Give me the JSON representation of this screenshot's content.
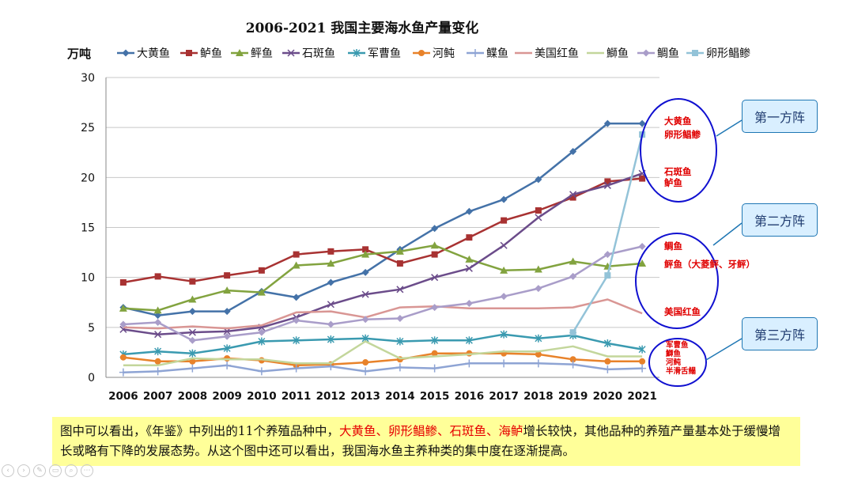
{
  "chart_data": {
    "type": "line",
    "title": "2006-2021 我国主要海水鱼产量变化",
    "ylabel": "万吨",
    "ylim": [
      0,
      30
    ],
    "yticks": [
      0,
      5,
      10,
      15,
      20,
      25,
      30
    ],
    "grid": true,
    "legend": "top",
    "categories": [
      "2006",
      "2007",
      "2008",
      "2009",
      "2010",
      "2011",
      "2012",
      "2013",
      "2014",
      "2015",
      "2016",
      "2017",
      "2018",
      "2019",
      "2020",
      "2021"
    ],
    "series": [
      {
        "name": "大黄鱼",
        "color": "#4472a8",
        "marker": "diamond",
        "values": [
          7.0,
          6.2,
          6.6,
          6.6,
          8.6,
          8.0,
          9.5,
          10.5,
          12.8,
          14.9,
          16.6,
          17.8,
          19.8,
          22.6,
          25.4,
          25.4
        ]
      },
      {
        "name": "鲈鱼",
        "color": "#a83232",
        "marker": "square",
        "values": [
          9.5,
          10.1,
          9.6,
          10.2,
          10.7,
          12.3,
          12.6,
          12.8,
          11.4,
          12.3,
          14.0,
          15.7,
          16.7,
          18.0,
          19.6,
          19.9
        ]
      },
      {
        "name": "鲆鱼",
        "color": "#82a33f",
        "marker": "triangle",
        "values": [
          6.9,
          6.7,
          7.8,
          8.7,
          8.5,
          11.2,
          11.4,
          12.3,
          12.6,
          13.2,
          11.8,
          10.7,
          10.8,
          11.6,
          11.1,
          11.4
        ]
      },
      {
        "name": "石斑鱼",
        "color": "#6b4c8a",
        "marker": "x",
        "values": [
          4.8,
          4.3,
          4.5,
          4.6,
          5.0,
          6.0,
          7.3,
          8.3,
          8.8,
          10.0,
          10.9,
          13.2,
          16.0,
          18.3,
          19.2,
          20.4
        ]
      },
      {
        "name": "军曹鱼",
        "color": "#3a9ab0",
        "marker": "asterisk",
        "values": [
          2.3,
          2.6,
          2.4,
          2.9,
          3.6,
          3.7,
          3.8,
          3.9,
          3.6,
          3.7,
          3.7,
          4.3,
          3.9,
          4.2,
          3.4,
          2.8
        ]
      },
      {
        "name": "河鲀",
        "color": "#e8822a",
        "marker": "circle",
        "values": [
          2.0,
          1.6,
          1.6,
          1.9,
          1.7,
          1.2,
          1.3,
          1.5,
          1.8,
          2.4,
          2.4,
          2.4,
          2.3,
          1.8,
          1.6,
          1.6
        ]
      },
      {
        "name": "鲽鱼",
        "color": "#8ea4d4",
        "marker": "plus",
        "values": [
          0.5,
          0.6,
          0.9,
          1.2,
          0.6,
          0.9,
          1.1,
          0.6,
          1.0,
          0.9,
          1.4,
          1.4,
          1.4,
          1.3,
          0.8,
          0.9
        ]
      },
      {
        "name": "美国红鱼",
        "color": "#d99694",
        "marker": "none",
        "values": [
          5.0,
          4.9,
          5.1,
          4.9,
          5.2,
          6.5,
          6.6,
          6.0,
          7.0,
          7.1,
          6.9,
          6.9,
          6.9,
          7.0,
          7.8,
          6.4
        ]
      },
      {
        "name": "鰤鱼",
        "color": "#c3d69b",
        "marker": "none",
        "values": [
          1.2,
          1.2,
          1.9,
          1.8,
          1.8,
          1.4,
          1.4,
          3.6,
          1.9,
          2.1,
          2.3,
          2.6,
          2.6,
          3.1,
          2.1,
          2.1
        ]
      },
      {
        "name": "鲷鱼",
        "color": "#a99dc9",
        "marker": "diamond",
        "values": [
          5.3,
          5.5,
          3.7,
          4.1,
          4.5,
          5.7,
          5.3,
          5.8,
          5.9,
          7.0,
          7.4,
          8.1,
          8.9,
          10.1,
          12.3,
          13.1
        ]
      },
      {
        "name": "卵形鲳鲹",
        "color": "#93c3d8",
        "marker": "square",
        "values": [
          null,
          null,
          null,
          null,
          null,
          null,
          null,
          null,
          null,
          null,
          null,
          null,
          null,
          4.5,
          10.2,
          24.3
        ]
      }
    ],
    "annotations": {
      "group1": {
        "box": "第一方阵",
        "labels": [
          "大黄鱼",
          "卵形鲳鲹",
          "石斑鱼",
          "鲈鱼"
        ]
      },
      "group2": {
        "box": "第二方阵",
        "labels": [
          "鲷鱼",
          "鲆鱼（大菱鲆、牙鲆）",
          "美国红鱼"
        ]
      },
      "group3": {
        "box": "第三方阵",
        "labels": [
          "军曹鱼",
          "鰤鱼",
          "河鲀",
          "半滑舌鳎"
        ]
      }
    }
  },
  "summary": {
    "part1": "图中可以看出，《年鉴》中列出的11个养殖品种中，",
    "highlight": "大黄鱼、卵形鲳鲹、石斑鱼、海鲈",
    "part2": "增长较快，其他品种的养殖产量基本处于缓慢增长或略有下降的发展态势。从这个图中还可以看出，我国海水鱼主养种类的集中度在逐渐提高。"
  }
}
